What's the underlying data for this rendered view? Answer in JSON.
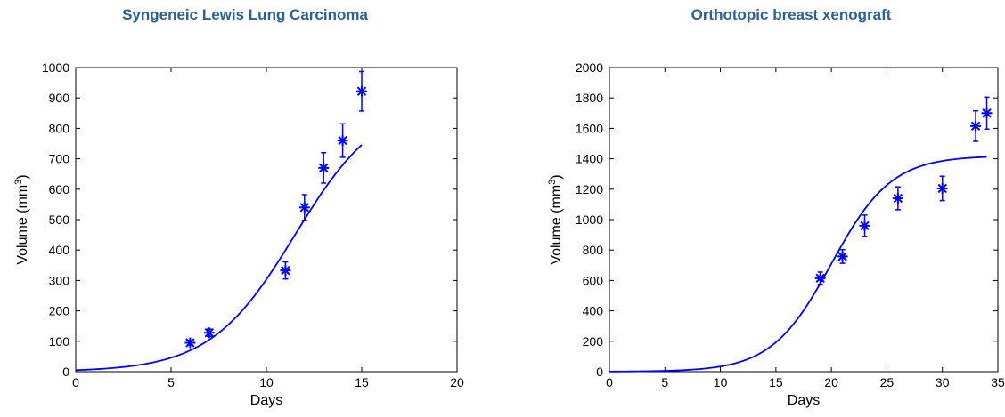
{
  "color": "#0000ff",
  "chart_data": [
    {
      "type": "scatter",
      "title": "Syngeneic Lewis Lung Carcinoma",
      "xlabel": "Days",
      "ylabel_main": "Volume (mm",
      "ylabel_sup": "3",
      "ylabel_close": ")",
      "xlim": [
        0,
        20
      ],
      "ylim": [
        0,
        1000
      ],
      "xticks": [
        0,
        5,
        10,
        15,
        20
      ],
      "yticks": [
        0,
        100,
        200,
        300,
        400,
        500,
        600,
        700,
        800,
        900,
        1000
      ],
      "grid": false,
      "series": [
        {
          "type": "errorbar",
          "marker": "asterisk",
          "x": [
            6,
            7,
            11,
            12,
            13,
            14,
            15
          ],
          "y": [
            95,
            128,
            333,
            540,
            670,
            760,
            922
          ],
          "err": [
            8,
            12,
            28,
            42,
            50,
            55,
            65
          ]
        },
        {
          "type": "line",
          "model": "logistic",
          "K": 900,
          "r": 0.45,
          "t0": 11.5,
          "x_range": [
            0,
            15
          ]
        }
      ]
    },
    {
      "type": "scatter",
      "title": "Orthotopic breast xenograft",
      "xlabel": "Days",
      "ylabel_main": "Volume (mm",
      "ylabel_sup": "3",
      "ylabel_close": ")",
      "xlim": [
        0,
        35
      ],
      "ylim": [
        0,
        2000
      ],
      "xticks": [
        0,
        5,
        10,
        15,
        20,
        25,
        30,
        35
      ],
      "yticks": [
        0,
        200,
        400,
        600,
        800,
        1000,
        1200,
        1400,
        1600,
        1800,
        2000
      ],
      "grid": false,
      "series": [
        {
          "type": "errorbar",
          "marker": "asterisk",
          "x": [
            19,
            21,
            23,
            26,
            30,
            33,
            34
          ],
          "y": [
            615,
            758,
            960,
            1140,
            1205,
            1615,
            1700
          ],
          "err": [
            40,
            45,
            70,
            75,
            80,
            100,
            105
          ]
        },
        {
          "type": "line",
          "model": "logistic",
          "K": 1420,
          "r": 0.37,
          "t0": 20,
          "x_range": [
            0,
            34
          ]
        }
      ]
    }
  ]
}
